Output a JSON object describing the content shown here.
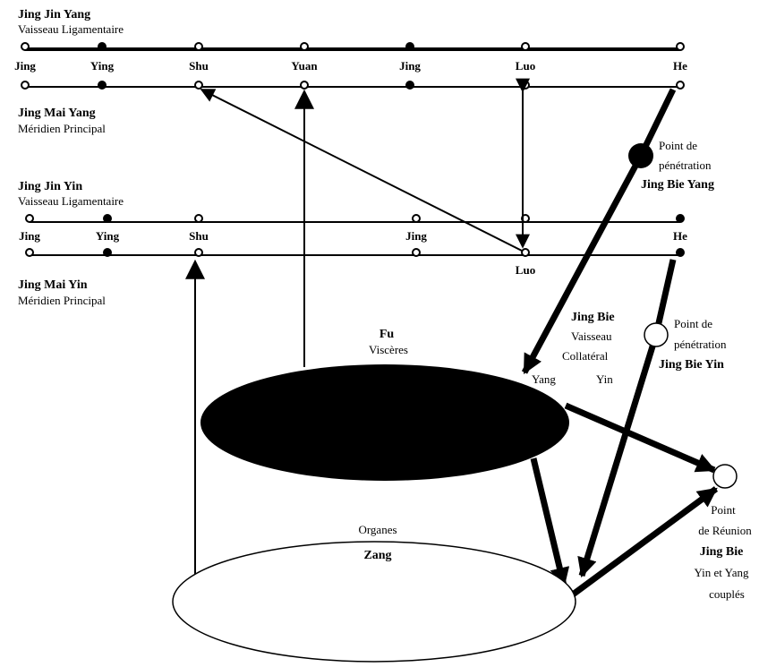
{
  "jing_jin_yang": {
    "title": "Jing Jin Yang",
    "subtitle": "Vaisseau Ligamentaire"
  },
  "jing_mai_yang": {
    "title": "Jing Mai Yang",
    "subtitle": "Méridien Principal"
  },
  "jing_jin_yin": {
    "title": "Jing Jin Yin",
    "subtitle": "Vaisseau Ligamentaire"
  },
  "jing_mai_yin": {
    "title": "Jing Mai Yin",
    "subtitle": "Méridien Principal"
  },
  "yang_points": {
    "jing1": "Jing",
    "ying": "Ying",
    "shu": "Shu",
    "yuan": "Yuan",
    "jing2": "Jing",
    "luo": "Luo",
    "he": "He"
  },
  "yin_points": {
    "jing1": "Jing",
    "ying": "Ying",
    "shu": "Shu",
    "jing2": "Jing",
    "he": "He",
    "luo": "Luo"
  },
  "penetration_yang": {
    "line1": "Point de",
    "line2": "pénétration",
    "line3": "Jing Bie Yang"
  },
  "penetration_yin": {
    "line1": "Point de",
    "line2": "pénétration",
    "line3": "Jing Bie Yin"
  },
  "jing_bie": {
    "line1": "Jing Bie",
    "line2": "Vaisseau",
    "line3": "Collatéral",
    "yang": "Yang",
    "yin": "Yin"
  },
  "fu": {
    "title": "Fu",
    "subtitle": "Viscères"
  },
  "zang": {
    "subtitle": "Organes",
    "title": "Zang"
  },
  "reunion": {
    "line1": "Point",
    "line2": "de Réunion",
    "line3": "Jing Bie",
    "line4": "Yin et Yang",
    "line5": "couplés"
  }
}
